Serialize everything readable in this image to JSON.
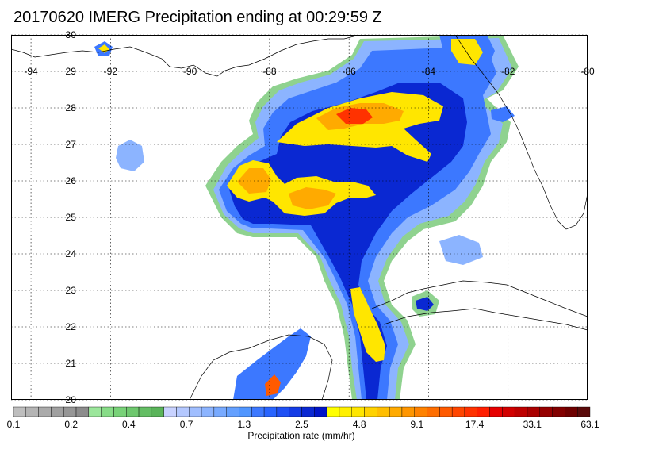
{
  "title": "20170620 IMERG Precipitation ending at 00:29:59 Z",
  "map": {
    "lon_labels": [
      "-94",
      "-92",
      "-90",
      "-88",
      "-86",
      "-84",
      "-82",
      "-80"
    ],
    "lat_labels": [
      "30",
      "29",
      "28",
      "27",
      "26",
      "25",
      "24",
      "23",
      "22",
      "21",
      "20"
    ],
    "lon_range": [
      -94.5,
      -80
    ],
    "lat_range": [
      20,
      30
    ]
  },
  "colorbar": {
    "title": "Precipitation rate (mm/hr)",
    "tick_labels": [
      "0.1",
      "0.2",
      "0.4",
      "0.7",
      "1.3",
      "2.5",
      "4.8",
      "9.1",
      "17.4",
      "33.1",
      "63.1"
    ],
    "colors": [
      "#bebebe",
      "#b4b4b4",
      "#aaaaaa",
      "#a0a0a0",
      "#969696",
      "#8c8c8c",
      "#9be69b",
      "#87dc87",
      "#78d278",
      "#6ec86e",
      "#64be64",
      "#5ab45a",
      "#c8d2ff",
      "#b4c8ff",
      "#a0beff",
      "#8cb4ff",
      "#78aaff",
      "#64a0ff",
      "#5096ff",
      "#3c78ff",
      "#2864ff",
      "#1e50f5",
      "#143ce6",
      "#0a28d2",
      "#0014c8",
      "#ffff00",
      "#fff000",
      "#ffe600",
      "#ffd200",
      "#ffbe00",
      "#ffaa00",
      "#ff9600",
      "#ff8200",
      "#ff6e00",
      "#ff5a00",
      "#ff4600",
      "#ff3200",
      "#ff1e00",
      "#e60000",
      "#d20000",
      "#be0000",
      "#aa0000",
      "#960000",
      "#820000",
      "#6e0000",
      "#5a0a0a"
    ]
  }
}
